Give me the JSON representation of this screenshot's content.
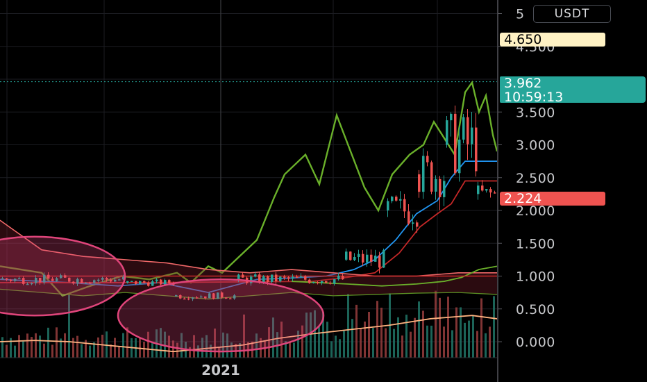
{
  "header": {
    "currency": "USDT"
  },
  "price_tags": {
    "marker": "4.650",
    "last_price": "3.962",
    "countdown": "10:59:13",
    "current": "2.224"
  },
  "colors": {
    "background": "#000000",
    "up": "#26a69a",
    "down": "#ef5350",
    "ma_blue": "#2196f3",
    "ma_red": "#c62828",
    "green_line": "#6ab02a",
    "orange_line": "#ffb380",
    "ellipse": "#e0457b",
    "marker_tag": "#fff2c4"
  },
  "chart_data": {
    "type": "candlestick",
    "currency": "USDT",
    "x_label": "2021",
    "y_ticks": [
      "0.000",
      "0.500",
      "1.000",
      "1.500",
      "2.000",
      "2.500",
      "3.000",
      "3.500",
      "4.500",
      "5"
    ],
    "ylim": [
      -0.3,
      5.3
    ],
    "grid": true,
    "last_price": 3.962,
    "horizontal_level": 1.0,
    "series": [
      {
        "kind": "line",
        "color": "#6ab02a",
        "points": [
          [
            0,
            1.15
          ],
          [
            60,
            1.05
          ],
          [
            90,
            0.7
          ],
          [
            130,
            0.85
          ],
          [
            175,
            1.0
          ],
          [
            215,
            0.95
          ],
          [
            255,
            1.05
          ],
          [
            275,
            0.9
          ],
          [
            300,
            1.15
          ],
          [
            320,
            1.05
          ],
          [
            345,
            1.3
          ],
          [
            370,
            1.55
          ],
          [
            395,
            2.2
          ],
          [
            410,
            2.55
          ],
          [
            440,
            2.85
          ],
          [
            460,
            2.4
          ],
          [
            485,
            3.45
          ],
          [
            505,
            2.9
          ],
          [
            525,
            2.35
          ],
          [
            545,
            2.0
          ],
          [
            565,
            2.55
          ],
          [
            590,
            2.85
          ],
          [
            610,
            3.0
          ],
          [
            625,
            3.35
          ],
          [
            640,
            3.1
          ],
          [
            655,
            2.85
          ],
          [
            670,
            3.8
          ],
          [
            680,
            3.95
          ],
          [
            690,
            3.5
          ],
          [
            700,
            3.75
          ],
          [
            710,
            3.15
          ],
          [
            716,
            2.9
          ]
        ]
      },
      {
        "kind": "line",
        "color": "#2196f3",
        "points": [
          [
            0,
            0.95
          ],
          [
            100,
            0.9
          ],
          [
            170,
            0.85
          ],
          [
            230,
            0.9
          ],
          [
            300,
            0.75
          ],
          [
            370,
            0.95
          ],
          [
            420,
            0.97
          ],
          [
            470,
            1.0
          ],
          [
            510,
            1.1
          ],
          [
            540,
            1.25
          ],
          [
            570,
            1.55
          ],
          [
            600,
            1.95
          ],
          [
            630,
            2.15
          ],
          [
            650,
            2.5
          ],
          [
            670,
            2.75
          ],
          [
            716,
            2.75
          ]
        ]
      },
      {
        "kind": "line",
        "color": "#c62828",
        "points": [
          [
            0,
            0.9
          ],
          [
            200,
            0.9
          ],
          [
            450,
            0.92
          ],
          [
            500,
            0.98
          ],
          [
            540,
            1.05
          ],
          [
            575,
            1.35
          ],
          [
            605,
            1.75
          ],
          [
            630,
            1.95
          ],
          [
            650,
            2.1
          ],
          [
            670,
            2.45
          ],
          [
            716,
            2.45
          ]
        ]
      },
      {
        "kind": "area",
        "color": "#f06868",
        "upper": [
          [
            0,
            1.85
          ],
          [
            20,
            1.7
          ],
          [
            60,
            1.4
          ],
          [
            120,
            1.3
          ],
          [
            180,
            1.25
          ],
          [
            240,
            1.2
          ],
          [
            300,
            1.1
          ],
          [
            360,
            1.05
          ],
          [
            420,
            1.1
          ],
          [
            480,
            1.05
          ],
          [
            540,
            1.0
          ],
          [
            600,
            1.0
          ],
          [
            660,
            1.05
          ],
          [
            716,
            1.05
          ]
        ],
        "lower": [
          [
            0,
            0.8
          ],
          [
            60,
            0.75
          ],
          [
            120,
            0.7
          ],
          [
            180,
            0.75
          ],
          [
            240,
            0.7
          ],
          [
            300,
            0.65
          ],
          [
            360,
            0.7
          ],
          [
            420,
            0.75
          ],
          [
            480,
            0.7
          ],
          [
            540,
            0.72
          ],
          [
            600,
            0.74
          ],
          [
            660,
            0.75
          ],
          [
            716,
            0.72
          ]
        ]
      },
      {
        "kind": "line",
        "color": "#6ab02a",
        "points": [
          [
            420,
            0.92
          ],
          [
            500,
            0.88
          ],
          [
            550,
            0.85
          ],
          [
            600,
            0.88
          ],
          [
            640,
            0.92
          ],
          [
            665,
            0.98
          ],
          [
            690,
            1.1
          ],
          [
            716,
            1.15
          ]
        ]
      },
      {
        "kind": "line",
        "color": "#ffb380",
        "points": [
          [
            0,
            0.0
          ],
          [
            50,
            0.02
          ],
          [
            100,
            0.0
          ],
          [
            150,
            -0.05
          ],
          [
            200,
            -0.1
          ],
          [
            250,
            -0.15
          ],
          [
            300,
            -0.1
          ],
          [
            350,
            -0.05
          ],
          [
            400,
            0.05
          ],
          [
            450,
            0.12
          ],
          [
            500,
            0.18
          ],
          [
            560,
            0.25
          ],
          [
            620,
            0.35
          ],
          [
            680,
            0.4
          ],
          [
            716,
            0.35
          ]
        ]
      }
    ],
    "ellipses": [
      {
        "cx": 50,
        "cy": 1.0,
        "rx": 130,
        "ry": 0.6
      },
      {
        "cx": 318,
        "cy": 0.4,
        "rx": 148,
        "ry": 0.55
      }
    ],
    "candle_phases": [
      {
        "x_start": 0,
        "x_end": 180,
        "level": 0.95,
        "amp": 0.07
      },
      {
        "x_start": 180,
        "x_end": 250,
        "level": 0.9,
        "amp": 0.05
      },
      {
        "x_start": 250,
        "x_end": 340,
        "level": 0.7,
        "amp": 0.05
      },
      {
        "x_start": 340,
        "x_end": 495,
        "level": 0.95,
        "amp": 0.08
      },
      {
        "x_start": 495,
        "x_end": 555,
        "level": 1.25,
        "amp": 0.15
      },
      {
        "x_start": 555,
        "x_end": 600,
        "level": 2.0,
        "amp": 0.25
      },
      {
        "x_start": 600,
        "x_end": 640,
        "level": 2.55,
        "amp": 0.35
      },
      {
        "x_start": 640,
        "x_end": 685,
        "level": 3.0,
        "amp": 0.5
      },
      {
        "x_start": 685,
        "x_end": 716,
        "level": 2.25,
        "amp": 0.15
      }
    ]
  }
}
